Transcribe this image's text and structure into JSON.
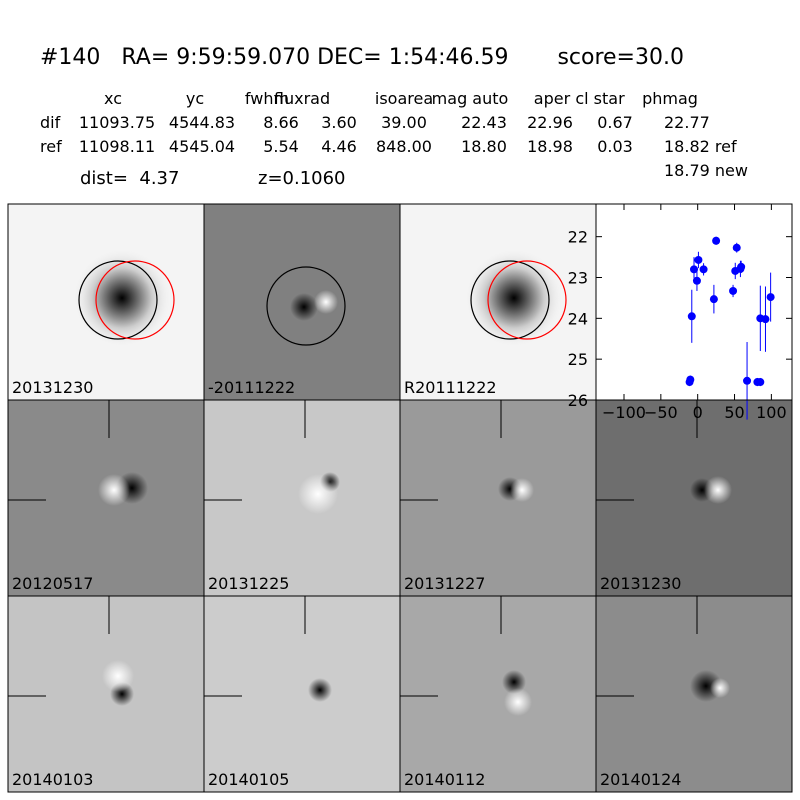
{
  "header": {
    "title": "#140   RA= 9:59:59.070 DEC= 1:54:46.59       score=30.0",
    "columns": [
      "xc",
      "yc",
      "fwhm",
      "fluxrad",
      "isoarea",
      "mag auto",
      "aper",
      "cl star",
      "phmag"
    ],
    "rows": [
      {
        "label": "dif",
        "cells": [
          "11093.75",
          "4544.83",
          "8.66",
          "3.60",
          "39.00",
          "22.43",
          "22.96",
          "0.67",
          "22.77"
        ]
      },
      {
        "label": "ref",
        "cells": [
          "11098.11",
          "4545.04",
          "5.54",
          "4.46",
          "848.00",
          "18.80",
          "18.98",
          "0.03",
          "18.82 ref"
        ]
      }
    ],
    "extra": "18.79 new",
    "dist": "dist=  4.37",
    "z": "z=0.1060"
  },
  "stamps": [
    {
      "label": "20131230"
    },
    {
      "label": "-20111222"
    },
    {
      "label": "R20111222"
    },
    {
      "label": "20120517"
    },
    {
      "label": "20131225"
    },
    {
      "label": "20131227"
    },
    {
      "label": "20131230",
      "color": "#ff0000"
    },
    {
      "label": "20140103"
    },
    {
      "label": "20140105"
    },
    {
      "label": "20140112"
    },
    {
      "label": "20140124"
    }
  ],
  "chart_data": {
    "type": "scatter",
    "x": [
      -11,
      -10,
      -8,
      -5,
      -1,
      1,
      8,
      22,
      25,
      48,
      51,
      53,
      58,
      59,
      67,
      81,
      85,
      85,
      92,
      99
    ],
    "series": [
      {
        "color": "#0000ff",
        "values": [
          25.56,
          25.5,
          23.95,
          22.8,
          23.08,
          22.57,
          22.8,
          23.53,
          22.1,
          23.33,
          22.84,
          22.27,
          22.79,
          22.74,
          25.53,
          25.56,
          25.56,
          24.0,
          24.02,
          23.48
        ],
        "errors": [
          0.1,
          0.1,
          0.65,
          0.3,
          0.25,
          0.2,
          0.15,
          0.35,
          0.1,
          0.15,
          0.2,
          0.12,
          0.2,
          0.15,
          0.95,
          0.1,
          0.1,
          0.8,
          0.8,
          0.6
        ]
      }
    ],
    "xlim": [
      -138,
      128
    ],
    "xticks": [
      {
        "value": -100,
        "label": "−100"
      },
      {
        "value": -50,
        "label": "−50"
      },
      0,
      50,
      100
    ],
    "ylim": [
      26,
      21.2
    ],
    "yticks": [
      22,
      23,
      24,
      25,
      26
    ]
  }
}
